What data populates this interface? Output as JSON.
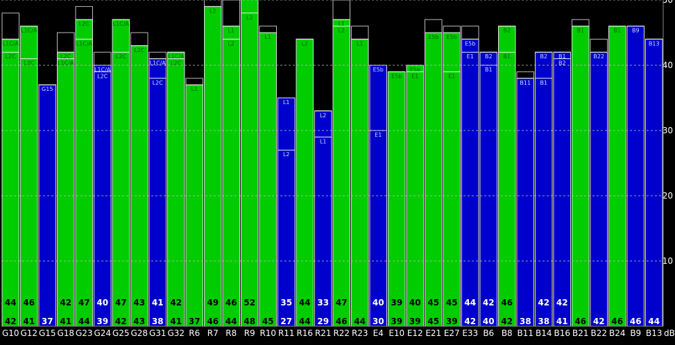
{
  "chart_data": {
    "type": "bar",
    "ylabel": "dB",
    "ylim": [
      0,
      55
    ],
    "yticks": [
      10,
      20,
      30,
      40,
      50
    ],
    "grid": true,
    "colors": {
      "green": "#00cc00",
      "blue": "#0000cc",
      "background": "#000000",
      "grid": "#c0c0c0"
    },
    "satellites": [
      {
        "name": "G10",
        "color": "green",
        "top": 48,
        "values": [
          44,
          42
        ],
        "signals": [
          {
            "label": "L1C/A",
            "value": 44
          },
          {
            "label": "L2C",
            "value": 42
          }
        ]
      },
      {
        "name": "G12",
        "color": "green",
        "top": 46,
        "values": [
          46,
          41
        ],
        "signals": [
          {
            "label": "L1C/A",
            "value": 46
          },
          {
            "label": "L2C",
            "value": 41
          }
        ]
      },
      {
        "name": "G15",
        "color": "blue",
        "top": 37,
        "values": [
          37
        ],
        "signals": [
          {
            "label": "G15",
            "value": 37
          }
        ]
      },
      {
        "name": "G18",
        "color": "green",
        "top": 45,
        "values": [
          42,
          41
        ],
        "signals": [
          {
            "label": "L2C",
            "value": 42
          },
          {
            "label": "L1C/A",
            "value": 41
          }
        ]
      },
      {
        "name": "G23",
        "color": "green",
        "top": 49,
        "values": [
          47,
          44
        ],
        "signals": [
          {
            "label": "L2C",
            "value": 47
          },
          {
            "label": "L1C/A",
            "value": 44
          }
        ]
      },
      {
        "name": "G24",
        "color": "blue",
        "top": 42,
        "values": [
          40,
          39
        ],
        "signals": [
          {
            "label": "L1C/A",
            "value": 40
          },
          {
            "label": "L2C",
            "value": 39
          }
        ]
      },
      {
        "name": "G25",
        "color": "green",
        "top": 47,
        "values": [
          47,
          42
        ],
        "signals": [
          {
            "label": "L1C/A",
            "value": 47
          },
          {
            "label": "L2C",
            "value": 42
          }
        ]
      },
      {
        "name": "G28",
        "color": "green",
        "top": 45,
        "values": [
          43,
          43
        ],
        "signals": [
          {
            "label": "L2C",
            "value": 43
          }
        ]
      },
      {
        "name": "G31",
        "color": "blue",
        "top": 42,
        "values": [
          41,
          38
        ],
        "signals": [
          {
            "label": "L1C/A",
            "value": 41
          },
          {
            "label": "L2C",
            "value": 38
          }
        ]
      },
      {
        "name": "G32",
        "color": "green",
        "top": 42,
        "values": [
          42,
          41
        ],
        "signals": [
          {
            "label": "L1C/A",
            "value": 42
          },
          {
            "label": "L2C",
            "value": 41
          }
        ]
      },
      {
        "name": "R6",
        "color": "green",
        "top": 38,
        "values": [
          37
        ],
        "signals": [
          {
            "label": "L1",
            "value": 37
          }
        ]
      },
      {
        "name": "R7",
        "color": "green",
        "top": 51,
        "values": [
          49,
          46
        ],
        "signals": [
          {
            "label": "L2",
            "value": 49
          }
        ]
      },
      {
        "name": "R8",
        "color": "green",
        "top": 50,
        "values": [
          46,
          44
        ],
        "signals": [
          {
            "label": "L1",
            "value": 46
          },
          {
            "label": "L2",
            "value": 44
          }
        ]
      },
      {
        "name": "R9",
        "color": "green",
        "top": 52,
        "values": [
          52,
          48
        ],
        "signals": [
          {
            "label": "L2",
            "value": 48
          }
        ]
      },
      {
        "name": "R10",
        "color": "green",
        "top": 46,
        "values": [
          45
        ],
        "signals": [
          {
            "label": "L1",
            "value": 45
          }
        ]
      },
      {
        "name": "R11",
        "color": "blue",
        "top": 35,
        "values": [
          35,
          27
        ],
        "signals": [
          {
            "label": "L1",
            "value": 35
          },
          {
            "label": "L2",
            "value": 27
          }
        ]
      },
      {
        "name": "R16",
        "color": "green",
        "top": 44,
        "values": [
          44,
          44
        ],
        "signals": [
          {
            "label": "L2",
            "value": 44
          }
        ]
      },
      {
        "name": "R21",
        "color": "blue",
        "top": 33,
        "values": [
          33,
          29
        ],
        "signals": [
          {
            "label": "L2",
            "value": 33
          },
          {
            "label": "L1",
            "value": 29
          }
        ]
      },
      {
        "name": "R22",
        "color": "green",
        "top": 50,
        "values": [
          47,
          46
        ],
        "signals": [
          {
            "label": "L1",
            "value": 47
          },
          {
            "label": "L2",
            "value": 46
          }
        ]
      },
      {
        "name": "R23",
        "color": "green",
        "top": 46,
        "values": [
          44
        ],
        "signals": [
          {
            "label": "L1",
            "value": 44
          }
        ]
      },
      {
        "name": "E4",
        "color": "blue",
        "top": 40,
        "values": [
          40,
          30
        ],
        "signals": [
          {
            "label": "E5b",
            "value": 40
          },
          {
            "label": "E1",
            "value": 30
          }
        ]
      },
      {
        "name": "E10",
        "color": "green",
        "top": 39,
        "values": [
          39,
          39
        ],
        "signals": [
          {
            "label": "E5b",
            "value": 39
          }
        ]
      },
      {
        "name": "E12",
        "color": "green",
        "top": 40,
        "values": [
          40,
          39
        ],
        "signals": [
          {
            "label": "E5b",
            "value": 40
          },
          {
            "label": "E1",
            "value": 39
          }
        ]
      },
      {
        "name": "E21",
        "color": "green",
        "top": 47,
        "values": [
          45,
          45
        ],
        "signals": [
          {
            "label": "E5b",
            "value": 45
          }
        ]
      },
      {
        "name": "E27",
        "color": "green",
        "top": 46,
        "values": [
          45,
          39
        ],
        "signals": [
          {
            "label": "E5b",
            "value": 45
          },
          {
            "label": "E1",
            "value": 39
          }
        ]
      },
      {
        "name": "E33",
        "color": "blue",
        "top": 46,
        "values": [
          44,
          42
        ],
        "signals": [
          {
            "label": "E5b",
            "value": 44
          },
          {
            "label": "E1",
            "value": 42
          }
        ]
      },
      {
        "name": "B6",
        "color": "blue",
        "top": 42,
        "values": [
          42,
          40
        ],
        "signals": [
          {
            "label": "B2",
            "value": 42
          },
          {
            "label": "B1",
            "value": 40
          }
        ]
      },
      {
        "name": "B8",
        "color": "green",
        "top": 46,
        "values": [
          46,
          42
        ],
        "signals": [
          {
            "label": "B2",
            "value": 46
          },
          {
            "label": "B1",
            "value": 42
          }
        ]
      },
      {
        "name": "B11",
        "color": "blue",
        "top": 39,
        "values": [
          38
        ],
        "signals": [
          {
            "label": "B11",
            "value": 38
          }
        ]
      },
      {
        "name": "B14",
        "color": "blue",
        "top": 42,
        "values": [
          42,
          38
        ],
        "signals": [
          {
            "label": "B2",
            "value": 42
          },
          {
            "label": "B1",
            "value": 38
          }
        ]
      },
      {
        "name": "B16",
        "color": "blue",
        "top": 42,
        "values": [
          42,
          41
        ],
        "signals": [
          {
            "label": "B1",
            "value": 42
          },
          {
            "label": "B2",
            "value": 41
          }
        ]
      },
      {
        "name": "B21",
        "color": "green",
        "top": 47,
        "values": [
          46
        ],
        "signals": [
          {
            "label": "B1",
            "value": 46
          }
        ]
      },
      {
        "name": "B22",
        "color": "blue",
        "top": 44,
        "values": [
          42
        ],
        "signals": [
          {
            "label": "B22",
            "value": 42
          }
        ]
      },
      {
        "name": "B24",
        "color": "green",
        "top": 46,
        "values": [
          46
        ],
        "signals": [
          {
            "label": "B1",
            "value": 46
          }
        ]
      },
      {
        "name": "B9",
        "color": "blue",
        "top": 46,
        "values": [
          46
        ],
        "signals": [
          {
            "label": "B9",
            "value": 46
          }
        ]
      },
      {
        "name": "B13",
        "color": "blue",
        "top": 44,
        "values": [
          44
        ],
        "signals": [
          {
            "label": "B13",
            "value": 44
          }
        ]
      }
    ]
  }
}
